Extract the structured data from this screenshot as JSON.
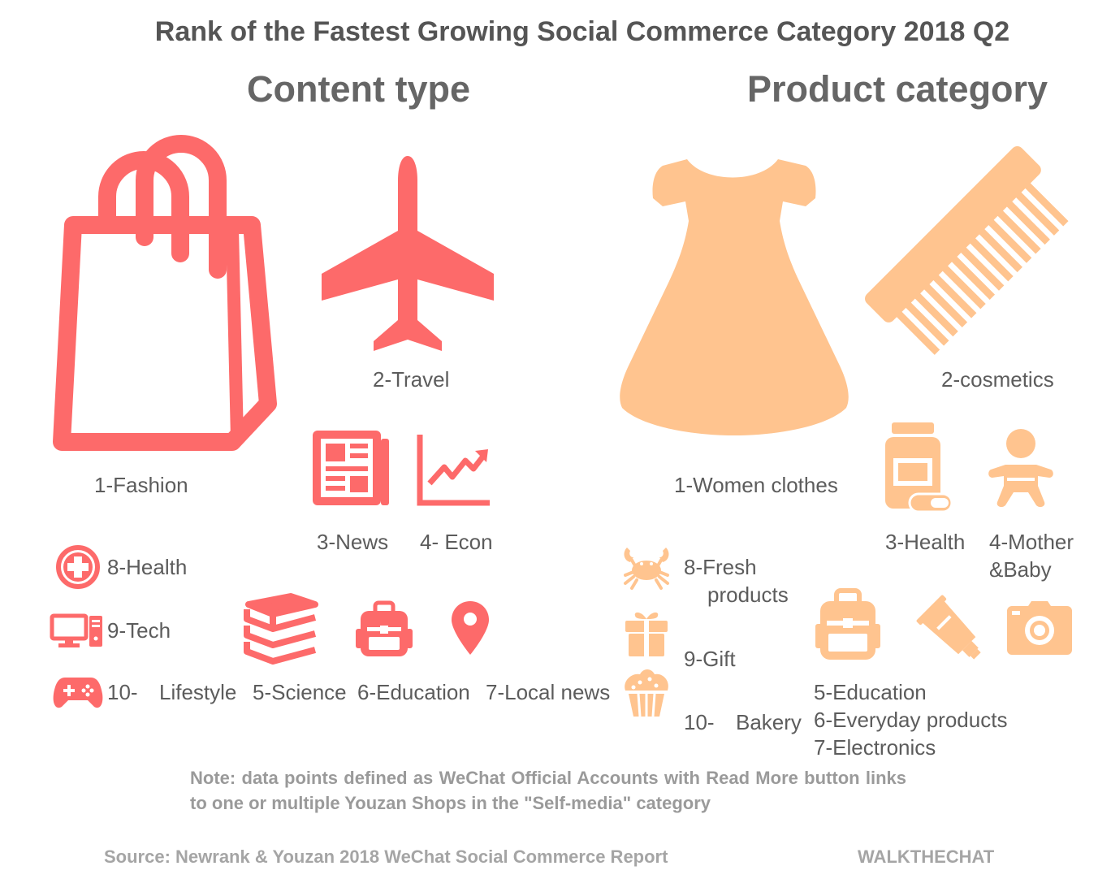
{
  "title": "Rank of the Fastest Growing Social Commerce Category 2018 Q2",
  "colors": {
    "content": "#fd6a6a",
    "product": "#ffc48f",
    "text": "#5c5c5c"
  },
  "content_type": {
    "heading": "Content type",
    "items": [
      {
        "label": "1-Fashion",
        "icon": "shopping-bag-icon"
      },
      {
        "label": "2-Travel",
        "icon": "airplane-icon"
      },
      {
        "label": "3-News",
        "icon": "newspaper-icon"
      },
      {
        "label": "4- Econ",
        "icon": "line-chart-icon"
      },
      {
        "label": "5-Science",
        "icon": "books-icon"
      },
      {
        "label": "6-Education",
        "icon": "backpack-icon"
      },
      {
        "label": "7-Local news",
        "icon": "map-pin-icon"
      },
      {
        "label": "8-Health",
        "icon": "medical-cross-icon"
      },
      {
        "label": "9-Tech",
        "icon": "computer-icon"
      },
      {
        "label_num": "10-",
        "label_text": "Lifestyle",
        "icon": "gamepad-icon"
      }
    ]
  },
  "product_category": {
    "heading": "Product category",
    "items": [
      {
        "label": "1-Women clothes",
        "icon": "dress-icon"
      },
      {
        "label": "2-cosmetics",
        "icon": "comb-icon"
      },
      {
        "label": "3-Health",
        "icon": "pill-bottle-icon"
      },
      {
        "label_line1": "4-Mother",
        "label_line2": "&Baby",
        "icon": "baby-icon"
      },
      {
        "label": "5-Education",
        "icon": "backpack-icon"
      },
      {
        "label": "6-Everyday products",
        "icon": "tube-icon"
      },
      {
        "label": "7-Electronics",
        "icon": "camera-icon"
      },
      {
        "label_line1": "8-Fresh",
        "label_line2": "products",
        "icon": "crab-icon"
      },
      {
        "label": "9-Gift",
        "icon": "gift-icon"
      },
      {
        "label_num": "10-",
        "label_text": "Bakery",
        "icon": "cupcake-icon"
      }
    ]
  },
  "note": "Note: data points defined as WeChat Official Accounts with Read More button links to one or multiple Youzan Shops in the \"Self-media\" category",
  "source": "Source: Newrank & Youzan 2018 WeChat Social Commerce Report",
  "brand": "WALKTHECHAT"
}
